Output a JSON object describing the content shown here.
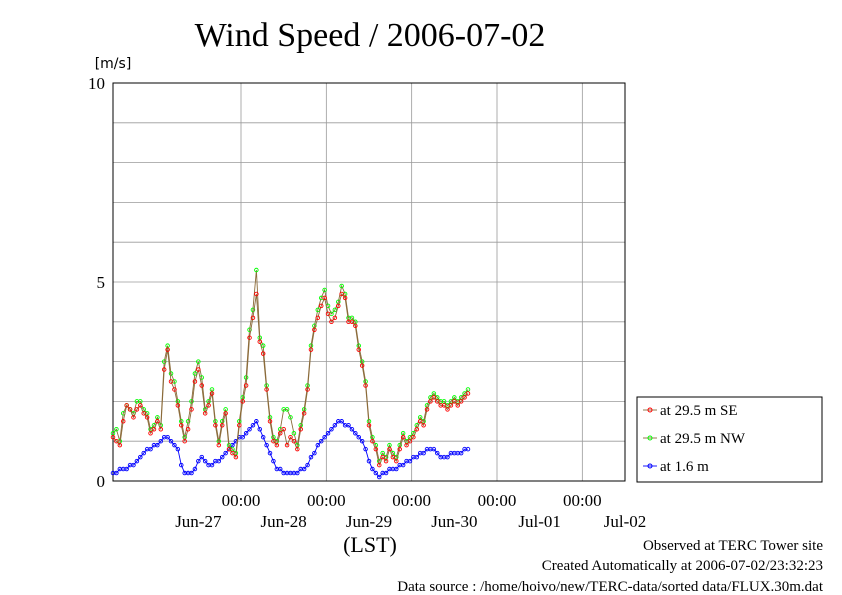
{
  "chart_data": {
    "type": "line",
    "title": "Wind Speed / 2006-07-02",
    "ylabel": "[m/s]",
    "xlabel": "(LST)",
    "ylim": [
      0,
      10
    ],
    "xlim": [
      -1.5,
      4.5
    ],
    "yticks": [
      0,
      5,
      10
    ],
    "ygrid": [
      1,
      2,
      3,
      4,
      6,
      7,
      8,
      9
    ],
    "xtick_time_labels": [
      {
        "x": 0,
        "text": "00:00"
      },
      {
        "x": 1,
        "text": "00:00"
      },
      {
        "x": 2,
        "text": "00:00"
      },
      {
        "x": 3,
        "text": "00:00"
      },
      {
        "x": 4,
        "text": "00:00"
      }
    ],
    "xtick_date_labels": [
      {
        "x": -0.5,
        "text": "Jun-27"
      },
      {
        "x": 0.5,
        "text": "Jun-28"
      },
      {
        "x": 1.5,
        "text": "Jun-29"
      },
      {
        "x": 2.5,
        "text": "Jun-30"
      },
      {
        "x": 3.5,
        "text": "Jul-01"
      },
      {
        "x": 4.5,
        "text": "Jul-02"
      }
    ],
    "x_unit_note": "x values are days relative to Jun-28 00:00",
    "grid": true,
    "legend_position": "right",
    "series": [
      {
        "name": "at 29.5 m SE",
        "color": "#ff0000",
        "line_color": "#8b6b3a",
        "x": [
          -1.5,
          -1.46,
          -1.42,
          -1.38,
          -1.34,
          -1.3,
          -1.26,
          -1.22,
          -1.18,
          -1.14,
          -1.1,
          -1.06,
          -1.02,
          -0.98,
          -0.94,
          -0.9,
          -0.86,
          -0.82,
          -0.78,
          -0.74,
          -0.7,
          -0.66,
          -0.62,
          -0.58,
          -0.54,
          -0.5,
          -0.46,
          -0.42,
          -0.38,
          -0.34,
          -0.3,
          -0.26,
          -0.22,
          -0.18,
          -0.14,
          -0.1,
          -0.06,
          -0.02,
          0.02,
          0.06,
          0.1,
          0.14,
          0.18,
          0.22,
          0.26,
          0.3,
          0.34,
          0.38,
          0.42,
          0.46,
          0.5,
          0.54,
          0.58,
          0.62,
          0.66,
          0.7,
          0.74,
          0.78,
          0.82,
          0.86,
          0.9,
          0.94,
          0.98,
          1.02,
          1.06,
          1.1,
          1.14,
          1.18,
          1.22,
          1.26,
          1.3,
          1.34,
          1.38,
          1.42,
          1.46,
          1.5,
          1.54,
          1.58,
          1.62,
          1.66,
          1.7,
          1.74,
          1.78,
          1.82,
          1.86,
          1.9,
          1.94,
          1.98,
          2.02,
          2.06,
          2.1,
          2.14,
          2.18,
          2.22,
          2.26,
          2.3,
          2.34,
          2.38,
          2.42,
          2.46,
          2.5,
          2.54,
          2.58,
          2.62,
          2.66
        ],
        "values": [
          1.1,
          1.0,
          0.9,
          1.5,
          1.9,
          1.8,
          1.6,
          1.8,
          1.9,
          1.7,
          1.6,
          1.2,
          1.3,
          1.5,
          1.3,
          2.8,
          3.3,
          2.5,
          2.3,
          1.9,
          1.4,
          1.0,
          1.3,
          1.8,
          2.5,
          2.8,
          2.4,
          1.7,
          1.9,
          2.2,
          1.4,
          0.9,
          1.4,
          1.7,
          0.8,
          0.7,
          0.6,
          1.4,
          2.0,
          2.4,
          3.6,
          4.1,
          4.7,
          3.5,
          3.2,
          2.3,
          1.5,
          1.0,
          0.9,
          1.2,
          1.3,
          0.9,
          1.1,
          1.0,
          0.8,
          1.3,
          1.7,
          2.3,
          3.3,
          3.8,
          4.1,
          4.4,
          4.6,
          4.2,
          4.0,
          4.1,
          4.4,
          4.7,
          4.6,
          4.0,
          4.0,
          3.9,
          3.3,
          2.9,
          2.4,
          1.4,
          1.0,
          0.8,
          0.4,
          0.6,
          0.5,
          0.8,
          0.6,
          0.5,
          0.8,
          1.1,
          0.9,
          1.0,
          1.1,
          1.3,
          1.5,
          1.4,
          1.8,
          2.0,
          2.1,
          2.0,
          1.9,
          1.9,
          1.8,
          1.9,
          2.0,
          1.9,
          2.0,
          2.1,
          2.2
        ]
      },
      {
        "name": "at 29.5 m NW",
        "color": "#00ff00",
        "line_color": "#8b6b3a",
        "x": [
          -1.5,
          -1.46,
          -1.42,
          -1.38,
          -1.34,
          -1.3,
          -1.26,
          -1.22,
          -1.18,
          -1.14,
          -1.1,
          -1.06,
          -1.02,
          -0.98,
          -0.94,
          -0.9,
          -0.86,
          -0.82,
          -0.78,
          -0.74,
          -0.7,
          -0.66,
          -0.62,
          -0.58,
          -0.54,
          -0.5,
          -0.46,
          -0.42,
          -0.38,
          -0.34,
          -0.3,
          -0.26,
          -0.22,
          -0.18,
          -0.14,
          -0.1,
          -0.06,
          -0.02,
          0.02,
          0.06,
          0.1,
          0.14,
          0.18,
          0.22,
          0.26,
          0.3,
          0.34,
          0.38,
          0.42,
          0.46,
          0.5,
          0.54,
          0.58,
          0.62,
          0.66,
          0.7,
          0.74,
          0.78,
          0.82,
          0.86,
          0.9,
          0.94,
          0.98,
          1.02,
          1.06,
          1.1,
          1.14,
          1.18,
          1.22,
          1.26,
          1.3,
          1.34,
          1.38,
          1.42,
          1.46,
          1.5,
          1.54,
          1.58,
          1.62,
          1.66,
          1.7,
          1.74,
          1.78,
          1.82,
          1.86,
          1.9,
          1.94,
          1.98,
          2.02,
          2.06,
          2.1,
          2.14,
          2.18,
          2.22,
          2.26,
          2.3,
          2.34,
          2.38,
          2.42,
          2.46,
          2.5,
          2.54,
          2.58,
          2.62,
          2.66
        ],
        "values": [
          1.2,
          1.3,
          1.0,
          1.7,
          1.9,
          1.8,
          1.7,
          2.0,
          2.0,
          1.8,
          1.7,
          1.3,
          1.4,
          1.6,
          1.4,
          3.0,
          3.4,
          2.7,
          2.5,
          2.0,
          1.5,
          1.1,
          1.5,
          2.0,
          2.7,
          3.0,
          2.6,
          1.8,
          2.0,
          2.3,
          1.5,
          1.0,
          1.5,
          1.8,
          0.9,
          0.8,
          0.7,
          1.5,
          2.1,
          2.6,
          3.8,
          4.3,
          5.3,
          3.6,
          3.4,
          2.4,
          1.6,
          1.1,
          1.0,
          1.3,
          1.8,
          1.8,
          1.6,
          1.2,
          0.9,
          1.4,
          1.8,
          2.4,
          3.4,
          3.9,
          4.3,
          4.6,
          4.8,
          4.4,
          4.2,
          4.3,
          4.5,
          4.9,
          4.7,
          4.1,
          4.1,
          4.0,
          3.4,
          3.0,
          2.5,
          1.5,
          1.1,
          0.9,
          0.5,
          0.7,
          0.6,
          0.9,
          0.7,
          0.6,
          0.9,
          1.2,
          1.0,
          1.1,
          1.2,
          1.4,
          1.6,
          1.5,
          1.9,
          2.1,
          2.2,
          2.1,
          2.0,
          2.0,
          1.9,
          2.0,
          2.1,
          2.0,
          2.1,
          2.2,
          2.3
        ]
      },
      {
        "name": "at 1.6 m",
        "color": "#0000ff",
        "line_color": "#0000ff",
        "x": [
          -1.5,
          -1.46,
          -1.42,
          -1.38,
          -1.34,
          -1.3,
          -1.26,
          -1.22,
          -1.18,
          -1.14,
          -1.1,
          -1.06,
          -1.02,
          -0.98,
          -0.94,
          -0.9,
          -0.86,
          -0.82,
          -0.78,
          -0.74,
          -0.7,
          -0.66,
          -0.62,
          -0.58,
          -0.54,
          -0.5,
          -0.46,
          -0.42,
          -0.38,
          -0.34,
          -0.3,
          -0.26,
          -0.22,
          -0.18,
          -0.14,
          -0.1,
          -0.06,
          -0.02,
          0.02,
          0.06,
          0.1,
          0.14,
          0.18,
          0.22,
          0.26,
          0.3,
          0.34,
          0.38,
          0.42,
          0.46,
          0.5,
          0.54,
          0.58,
          0.62,
          0.66,
          0.7,
          0.74,
          0.78,
          0.82,
          0.86,
          0.9,
          0.94,
          0.98,
          1.02,
          1.06,
          1.1,
          1.14,
          1.18,
          1.22,
          1.26,
          1.3,
          1.34,
          1.38,
          1.42,
          1.46,
          1.5,
          1.54,
          1.58,
          1.62,
          1.66,
          1.7,
          1.74,
          1.78,
          1.82,
          1.86,
          1.9,
          1.94,
          1.98,
          2.02,
          2.06,
          2.1,
          2.14,
          2.18,
          2.22,
          2.26,
          2.3,
          2.34,
          2.38,
          2.42,
          2.46,
          2.5,
          2.54,
          2.58,
          2.62,
          2.66
        ],
        "values": [
          0.2,
          0.2,
          0.3,
          0.3,
          0.3,
          0.4,
          0.4,
          0.5,
          0.6,
          0.7,
          0.8,
          0.8,
          0.9,
          0.9,
          1.0,
          1.1,
          1.1,
          1.0,
          0.9,
          0.8,
          0.4,
          0.2,
          0.2,
          0.2,
          0.3,
          0.5,
          0.6,
          0.5,
          0.4,
          0.4,
          0.5,
          0.5,
          0.6,
          0.7,
          0.8,
          0.9,
          1.0,
          1.1,
          1.1,
          1.2,
          1.3,
          1.4,
          1.5,
          1.3,
          1.1,
          0.9,
          0.7,
          0.5,
          0.3,
          0.3,
          0.2,
          0.2,
          0.2,
          0.2,
          0.2,
          0.3,
          0.3,
          0.4,
          0.6,
          0.7,
          0.9,
          1.0,
          1.1,
          1.2,
          1.3,
          1.4,
          1.5,
          1.5,
          1.4,
          1.4,
          1.3,
          1.2,
          1.1,
          1.0,
          0.8,
          0.5,
          0.3,
          0.2,
          0.1,
          0.2,
          0.2,
          0.3,
          0.3,
          0.3,
          0.4,
          0.4,
          0.5,
          0.5,
          0.6,
          0.6,
          0.7,
          0.7,
          0.8,
          0.8,
          0.8,
          0.7,
          0.6,
          0.6,
          0.6,
          0.7,
          0.7,
          0.7,
          0.7,
          0.8,
          0.8
        ]
      }
    ]
  },
  "footer": {
    "observed": "Observed at TERC Tower site",
    "created": "Created Automatically at 2006-07-02/23:32:23",
    "source": "Data source : /home/hoivo/new/TERC-data/sorted data/FLUX.30m.dat"
  }
}
